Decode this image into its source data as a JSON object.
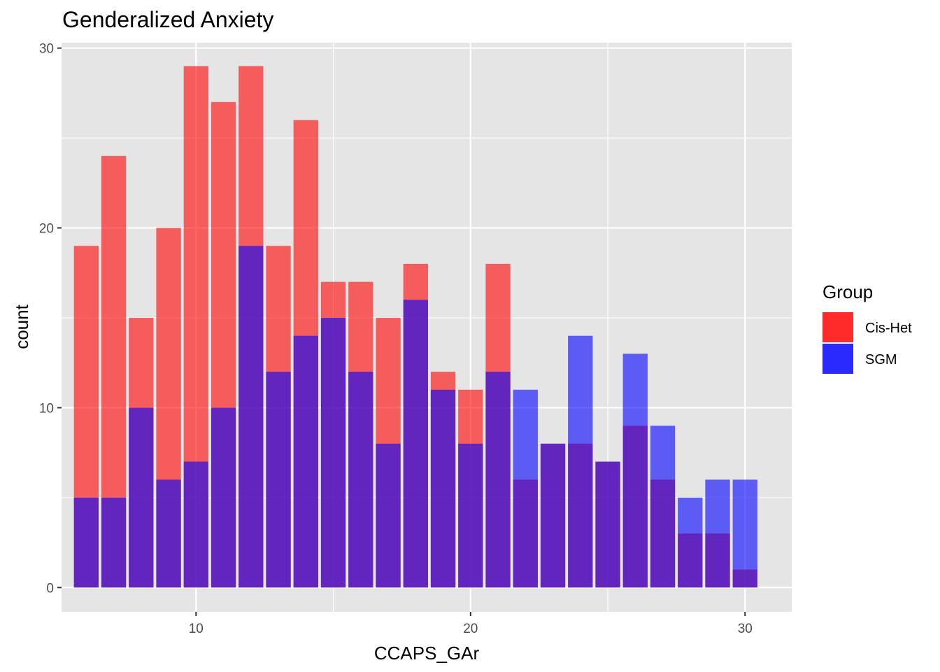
{
  "chart_data": {
    "type": "bar",
    "title": "Genderalized Anxiety",
    "xlabel": "CCAPS_GAr",
    "ylabel": "count",
    "x": [
      6,
      7,
      8,
      9,
      10,
      11,
      12,
      13,
      14,
      15,
      16,
      17,
      18,
      19,
      20,
      21,
      22,
      23,
      24,
      25,
      26,
      27,
      28,
      29,
      30
    ],
    "series": [
      {
        "name": "Cis-Het",
        "color": "#ff0000",
        "values": [
          19,
          24,
          15,
          20,
          29,
          27,
          29,
          19,
          26,
          17,
          17,
          15,
          18,
          12,
          11,
          18,
          6,
          8,
          8,
          7,
          9,
          6,
          3,
          3,
          1
        ]
      },
      {
        "name": "SGM",
        "color": "#0000ff",
        "values": [
          5,
          5,
          10,
          6,
          7,
          10,
          19,
          12,
          14,
          15,
          12,
          8,
          16,
          11,
          8,
          12,
          11,
          8,
          14,
          7,
          13,
          9,
          5,
          6,
          6
        ]
      }
    ],
    "xlim": [
      5.1,
      31.7
    ],
    "ylim": [
      -1.35,
      30.3
    ],
    "x_ticks": [
      10,
      20,
      30
    ],
    "y_ticks": [
      0,
      10,
      20,
      30
    ],
    "x_minor_ticks": [
      5,
      15,
      25
    ],
    "y_minor_ticks": [
      5,
      15,
      25
    ],
    "bar_width": 0.9,
    "bar_opacity": 0.6,
    "grid": true,
    "panel_color": "#e5e5e5",
    "legend": {
      "title": "Group",
      "position": "right",
      "key_colors": [
        "#ff2a2a",
        "#2a2aff"
      ]
    }
  }
}
